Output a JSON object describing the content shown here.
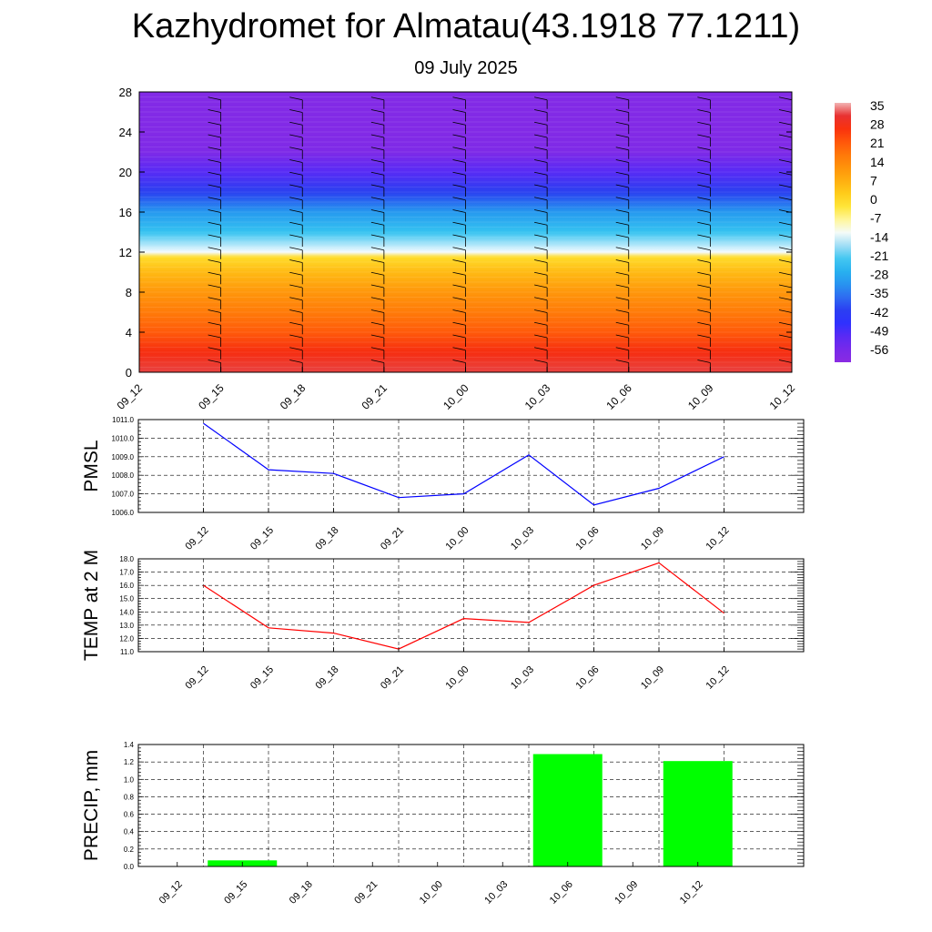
{
  "header": {
    "title": "Kazhydromet for Almatau(43.1918 77.1211)",
    "subtitle": "09 July 2025"
  },
  "chart_data": [
    {
      "type": "heatmap",
      "title": "",
      "x": [
        "09_12",
        "09_15",
        "09_18",
        "09_21",
        "10_00",
        "10_03",
        "10_06",
        "10_09",
        "10_12"
      ],
      "yticks": [
        0,
        4,
        8,
        12,
        16,
        20,
        24,
        28
      ],
      "ylim": [
        0,
        28
      ],
      "colorbar": {
        "labels": [
          "35",
          "28",
          "21",
          "14",
          "7",
          "0",
          "-7",
          "-14",
          "-21",
          "-28",
          "-35",
          "-42",
          "-49",
          "-56"
        ],
        "range": [
          -60,
          37
        ]
      },
      "profile": [
        {
          "level": 0,
          "value": 33
        },
        {
          "level": 2,
          "value": 28
        },
        {
          "level": 4,
          "value": 22
        },
        {
          "level": 6,
          "value": 17
        },
        {
          "level": 8,
          "value": 12
        },
        {
          "level": 10,
          "value": 6
        },
        {
          "level": 11.5,
          "value": 0
        },
        {
          "level": 12,
          "value": -12
        },
        {
          "level": 14,
          "value": -22
        },
        {
          "level": 16,
          "value": -30
        },
        {
          "level": 18,
          "value": -40
        },
        {
          "level": 20,
          "value": -50
        },
        {
          "level": 22,
          "value": -57
        },
        {
          "level": 24,
          "value": -58
        },
        {
          "level": 28,
          "value": -58
        }
      ],
      "wind_barbs": "shown at each time step"
    },
    {
      "type": "line",
      "ylabel": "PMSL",
      "x": [
        "09_12",
        "09_15",
        "09_18",
        "09_21",
        "10_00",
        "10_03",
        "10_06",
        "10_09",
        "10_12"
      ],
      "ylim": [
        1006.0,
        1011.0
      ],
      "yticks": [
        "1006.0",
        "1007.0",
        "1008.0",
        "1009.0",
        "1010.0",
        "1011.0"
      ],
      "series": [
        {
          "values": [
            1010.8,
            1008.3,
            1008.1,
            1006.8,
            1007.0,
            1009.1,
            1006.4,
            1007.3,
            1009.0
          ]
        }
      ],
      "color": "#0000ff",
      "grid": true
    },
    {
      "type": "line",
      "ylabel": "TEMP at 2 M",
      "x": [
        "09_12",
        "09_15",
        "09_18",
        "09_21",
        "10_00",
        "10_03",
        "10_06",
        "10_09",
        "10_12"
      ],
      "ylim": [
        11.0,
        18.0
      ],
      "yticks": [
        "11.0",
        "12.0",
        "13.0",
        "14.0",
        "15.0",
        "16.0",
        "17.0",
        "18.0"
      ],
      "series": [
        {
          "values": [
            16.0,
            12.8,
            12.4,
            11.2,
            13.5,
            13.2,
            16.0,
            17.7,
            13.9
          ]
        }
      ],
      "color": "#ff0000",
      "grid": true
    },
    {
      "type": "bar",
      "ylabel": "PRECIP, mm",
      "x": [
        "09_12",
        "09_15",
        "09_18",
        "09_21",
        "10_00",
        "10_03",
        "10_06",
        "10_09",
        "10_12"
      ],
      "ylim": [
        0.0,
        1.4
      ],
      "yticks": [
        "0.0",
        "0.2",
        "0.4",
        "0.6",
        "0.8",
        "1.0",
        "1.2",
        "1.4"
      ],
      "series": [
        {
          "values": [
            0.0,
            0.07,
            0.0,
            0.0,
            0.0,
            0.0,
            1.29,
            0.0,
            1.21
          ]
        }
      ],
      "color": "#00ff00",
      "grid": true
    }
  ]
}
